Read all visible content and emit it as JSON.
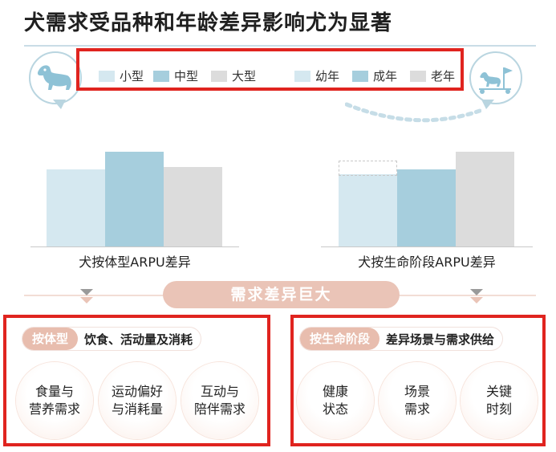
{
  "title": "犬需求受品种和年龄差异影响尤为显著",
  "icons": {
    "left": "dog-icon",
    "right": "dog-agility-icon"
  },
  "legend": {
    "size": [
      {
        "label": "小型",
        "color": "#d5e8f0"
      },
      {
        "label": "中型",
        "color": "#a6cedd"
      },
      {
        "label": "大型",
        "color": "#dcdcdc"
      }
    ],
    "age": [
      {
        "label": "幼年",
        "color": "#d5e8f0"
      },
      {
        "label": "成年",
        "color": "#a6cedd"
      },
      {
        "label": "老年",
        "color": "#dcdcdc"
      }
    ]
  },
  "chart_data": [
    {
      "type": "bar",
      "title": "",
      "xlabel": "犬按体型ARPU差异",
      "categories": [
        "小型",
        "中型",
        "大型"
      ],
      "values": [
        60,
        74,
        62
      ],
      "colors": [
        "#d5e8f0",
        "#a6cedd",
        "#dcdcdc"
      ],
      "ylim": [
        0,
        100
      ]
    },
    {
      "type": "bar",
      "title": "",
      "xlabel": "犬按生命阶段ARPU差异",
      "categories": [
        "幼年",
        "成年",
        "老年"
      ],
      "values": [
        56,
        60,
        74
      ],
      "ghost_value": 67,
      "colors": [
        "#d5e8f0",
        "#a6cedd",
        "#dcdcdc"
      ],
      "ylim": [
        0,
        100
      ]
    }
  ],
  "banner": "需求差异巨大",
  "panels": {
    "left": {
      "tag": "按体型",
      "heading": "饮食、活动量及消耗",
      "items": [
        {
          "line1": "食量与",
          "line2": "营养需求"
        },
        {
          "line1": "运动偏好",
          "line2": "与消耗量"
        },
        {
          "line1": "互动与",
          "line2": "陪伴需求"
        }
      ]
    },
    "right": {
      "tag": "按生命阶段",
      "heading": "差异场景与需求供给",
      "items": [
        {
          "line1": "健康",
          "line2": "状态"
        },
        {
          "line1": "场景",
          "line2": "需求"
        },
        {
          "line1": "关键",
          "line2": "时刻"
        }
      ]
    }
  }
}
